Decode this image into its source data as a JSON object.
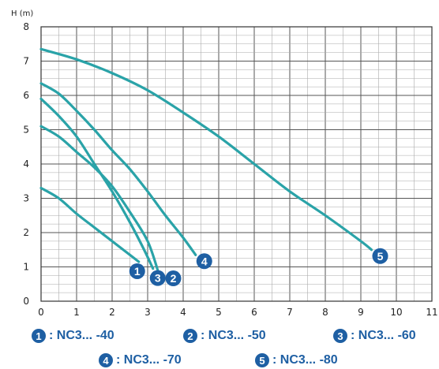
{
  "chart_data": {
    "type": "line",
    "ylabel": "H (m)",
    "xlim": [
      0,
      11
    ],
    "ylim": [
      0,
      8
    ],
    "x_ticks": [
      "0",
      "1",
      "2",
      "3",
      "4",
      "5",
      "6",
      "7",
      "8",
      "9",
      "10",
      "11"
    ],
    "y_ticks": [
      "0",
      "1",
      "2",
      "3",
      "4",
      "5",
      "6",
      "7",
      "8"
    ],
    "grid": true,
    "line_color": "#2aa3a8",
    "label_color": "#1e5fa3",
    "series": [
      {
        "name": "NC3... -40",
        "badge": "1",
        "points": [
          [
            0,
            3.3
          ],
          [
            0.5,
            3.0
          ],
          [
            1.0,
            2.55
          ],
          [
            1.5,
            2.15
          ],
          [
            2.0,
            1.75
          ],
          [
            2.5,
            1.35
          ],
          [
            2.75,
            1.15
          ]
        ]
      },
      {
        "name": "NC3... -50",
        "badge": "2",
        "points": [
          [
            0,
            5.1
          ],
          [
            0.5,
            4.8
          ],
          [
            1.0,
            4.35
          ],
          [
            1.5,
            3.9
          ],
          [
            2.0,
            3.35
          ],
          [
            2.5,
            2.6
          ],
          [
            3.0,
            1.75
          ],
          [
            3.3,
            0.85
          ]
        ]
      },
      {
        "name": "NC3... -60",
        "badge": "3",
        "points": [
          [
            0,
            5.9
          ],
          [
            0.5,
            5.4
          ],
          [
            1.0,
            4.8
          ],
          [
            1.5,
            4.0
          ],
          [
            2.0,
            3.2
          ],
          [
            2.5,
            2.3
          ],
          [
            2.9,
            1.5
          ],
          [
            3.15,
            0.95
          ]
        ]
      },
      {
        "name": "NC3... -70",
        "badge": "4",
        "points": [
          [
            0,
            6.35
          ],
          [
            0.5,
            6.05
          ],
          [
            1.0,
            5.55
          ],
          [
            1.5,
            5.0
          ],
          [
            2.0,
            4.4
          ],
          [
            2.5,
            3.85
          ],
          [
            3.0,
            3.2
          ],
          [
            3.5,
            2.5
          ],
          [
            4.0,
            1.85
          ],
          [
            4.35,
            1.35
          ]
        ]
      },
      {
        "name": "NC3... -80",
        "badge": "5",
        "points": [
          [
            0,
            7.35
          ],
          [
            1.0,
            7.05
          ],
          [
            2.0,
            6.65
          ],
          [
            3.0,
            6.15
          ],
          [
            4.0,
            5.5
          ],
          [
            5.0,
            4.8
          ],
          [
            6.0,
            4.0
          ],
          [
            7.0,
            3.2
          ],
          [
            8.0,
            2.5
          ],
          [
            9.0,
            1.75
          ],
          [
            9.3,
            1.5
          ]
        ]
      }
    ]
  },
  "legend": {
    "items": [
      {
        "badge": "1",
        "label": ": NC3... -40"
      },
      {
        "badge": "2",
        "label": ": NC3... -50"
      },
      {
        "badge": "3",
        "label": ": NC3... -60"
      },
      {
        "badge": "4",
        "label": ": NC3... -70"
      },
      {
        "badge": "5",
        "label": ": NC3... -80"
      }
    ]
  }
}
